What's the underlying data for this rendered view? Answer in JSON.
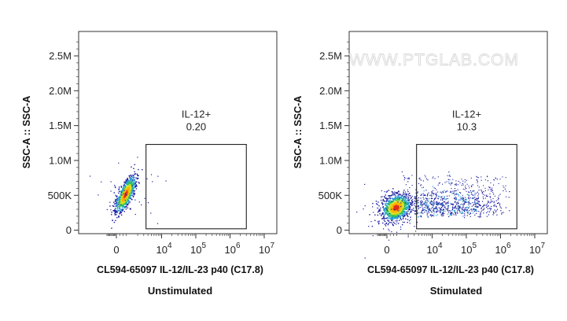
{
  "watermark": "WWW.PTGLAB.COM",
  "colors": {
    "density_low": "#1a1aa0",
    "density_mid": "#20c0a0",
    "density_high": "#ffd020",
    "density_peak": "#e02010",
    "axis": "#222222",
    "gate": "#222222"
  },
  "chart_data": [
    {
      "type": "scatter",
      "caption": "Unstimulated",
      "xlabel": "CL594-65097 IL-12/IL-23 p40 (C17.8)",
      "ylabel": "SSC-A :: SSC-A",
      "x_scale": "biexponential",
      "x_tick_labels": [
        "0",
        "10^4",
        "10^5",
        "10^6",
        "10^7"
      ],
      "y_tick_labels": [
        "0",
        "500K",
        "1.0M",
        "1.5M",
        "2.0M",
        "2.5M"
      ],
      "y_tick_values": [
        0,
        500000,
        1000000,
        1500000,
        2000000,
        2500000
      ],
      "ylim": [
        -50000,
        2850000
      ],
      "gate": {
        "name": "IL-12+",
        "percent": "0.20",
        "x_min": 3500,
        "x_max": 3000000,
        "y_min": 20000,
        "y_max": 1230000
      },
      "population": {
        "x_center": 800,
        "y_center": 520000,
        "description": "single dense cluster, low fluorescence"
      }
    },
    {
      "type": "scatter",
      "caption": "Stimulated",
      "xlabel": "CL594-65097 IL-12/IL-23 p40 (C17.8)",
      "ylabel": "SSC-A :: SSC-A",
      "x_scale": "biexponential",
      "x_tick_labels": [
        "0",
        "10^4",
        "10^5",
        "10^6",
        "10^7"
      ],
      "y_tick_labels": [
        "0",
        "500K",
        "1.0M",
        "1.5M",
        "2.0M",
        "2.5M"
      ],
      "y_tick_values": [
        0,
        500000,
        1000000,
        1500000,
        2000000,
        2500000
      ],
      "ylim": [
        -50000,
        2850000
      ],
      "gate": {
        "name": "IL-12+",
        "percent": "10.3",
        "x_min": 3500,
        "x_max": 3000000,
        "y_min": 20000,
        "y_max": 1230000
      },
      "population": {
        "x_center": 800,
        "y_center": 330000,
        "description": "dense negative cluster with a spread of IL-12+ events"
      }
    }
  ]
}
